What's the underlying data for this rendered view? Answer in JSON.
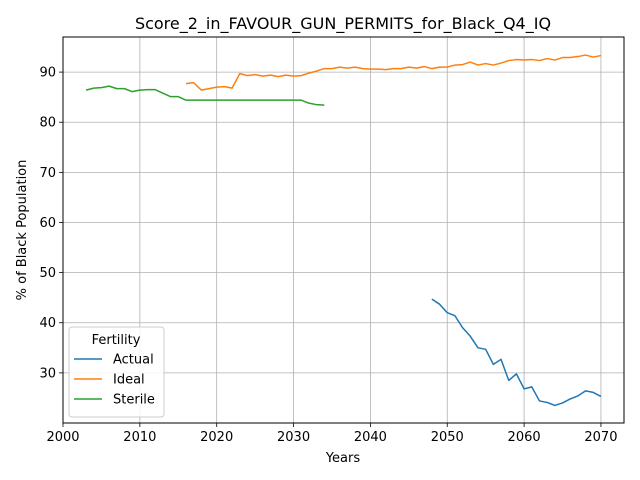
{
  "chart_data": {
    "type": "line",
    "title": "Score_2_in_FAVOUR_GUN_PERMITS_for_Black_Q4_IQ",
    "xlabel": "Years",
    "ylabel": "% of Black Population",
    "xlim": [
      2000,
      2073
    ],
    "ylim": [
      20,
      97
    ],
    "xticks": [
      2000,
      2010,
      2020,
      2030,
      2040,
      2050,
      2060,
      2070
    ],
    "yticks": [
      30,
      40,
      50,
      60,
      70,
      80,
      90
    ],
    "grid": true,
    "legend": {
      "title": "Fertility",
      "placement": "lower-left"
    },
    "series": [
      {
        "name": "Actual",
        "color": "#1f77b4",
        "x": [
          2048,
          2049,
          2050,
          2051,
          2052,
          2053,
          2054,
          2055,
          2056,
          2057,
          2058,
          2059,
          2060,
          2061,
          2062,
          2063,
          2064,
          2065,
          2066,
          2067,
          2068,
          2069,
          2070
        ],
        "y": [
          44.7,
          43.7,
          42.0,
          41.4,
          39.0,
          37.3,
          35.0,
          34.7,
          31.7,
          32.7,
          28.5,
          29.8,
          26.8,
          27.2,
          24.4,
          24.1,
          23.5,
          24.0,
          24.8,
          25.4,
          26.4,
          26.1,
          25.3
        ]
      },
      {
        "name": "Ideal",
        "color": "#ff7f0e",
        "x": [
          2016,
          2017,
          2018,
          2019,
          2020,
          2021,
          2022,
          2023,
          2024,
          2025,
          2026,
          2027,
          2028,
          2029,
          2030,
          2031,
          2032,
          2033,
          2034,
          2035,
          2036,
          2037,
          2038,
          2039,
          2040,
          2041,
          2042,
          2043,
          2044,
          2045,
          2046,
          2047,
          2048,
          2049,
          2050,
          2051,
          2052,
          2053,
          2054,
          2055,
          2056,
          2057,
          2058,
          2059,
          2060,
          2061,
          2062,
          2063,
          2064,
          2065,
          2066,
          2067,
          2068,
          2069,
          2070
        ],
        "y": [
          87.7,
          87.9,
          86.4,
          86.7,
          87.0,
          87.1,
          86.8,
          89.7,
          89.3,
          89.5,
          89.2,
          89.4,
          89.1,
          89.4,
          89.2,
          89.3,
          89.8,
          90.2,
          90.7,
          90.7,
          91.0,
          90.8,
          91.0,
          90.7,
          90.6,
          90.6,
          90.5,
          90.7,
          90.7,
          91.0,
          90.8,
          91.1,
          90.7,
          91.0,
          91.0,
          91.4,
          91.5,
          92.0,
          91.4,
          91.7,
          91.4,
          91.8,
          92.3,
          92.5,
          92.4,
          92.5,
          92.3,
          92.7,
          92.4,
          92.9,
          92.9,
          93.1,
          93.4,
          93.0,
          93.3
        ]
      },
      {
        "name": "Sterile",
        "color": "#2ca02c",
        "x": [
          2003,
          2004,
          2005,
          2006,
          2007,
          2008,
          2009,
          2010,
          2011,
          2012,
          2013,
          2014,
          2015,
          2016,
          2017,
          2018,
          2019,
          2020,
          2021,
          2022,
          2023,
          2024,
          2025,
          2026,
          2027,
          2028,
          2029,
          2030,
          2031,
          2032,
          2033,
          2034
        ],
        "y": [
          86.4,
          86.8,
          86.9,
          87.2,
          86.7,
          86.7,
          86.1,
          86.4,
          86.5,
          86.5,
          85.8,
          85.1,
          85.1,
          84.4,
          84.4,
          84.4,
          84.4,
          84.4,
          84.4,
          84.4,
          84.4,
          84.4,
          84.4,
          84.4,
          84.4,
          84.4,
          84.4,
          84.4,
          84.4,
          83.8,
          83.5,
          83.4
        ]
      }
    ]
  }
}
